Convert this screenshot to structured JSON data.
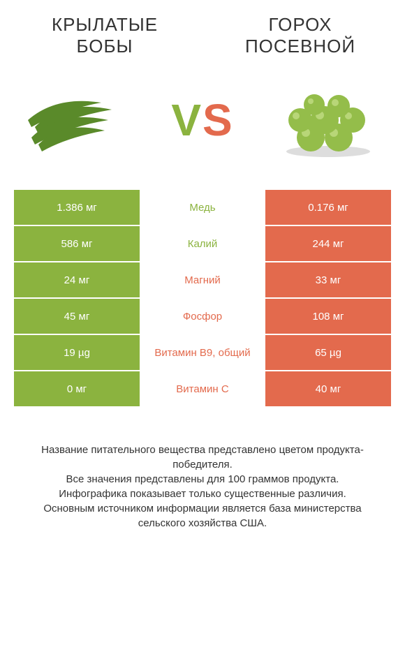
{
  "titles": {
    "left": "КРЫЛАТЫЕ БОБЫ",
    "right": "ГОРОХ ПОСЕВНОЙ"
  },
  "vs": {
    "v": "V",
    "s": "S"
  },
  "colors": {
    "left": "#8bb33f",
    "right": "#e36a4d",
    "left_text_winner": "#8bb33f",
    "right_text_winner": "#e36a4d"
  },
  "rows": [
    {
      "left": "1.386 мг",
      "label": "Медь",
      "right": "0.176 мг",
      "winner": "left"
    },
    {
      "left": "586 мг",
      "label": "Калий",
      "right": "244 мг",
      "winner": "left"
    },
    {
      "left": "24 мг",
      "label": "Магний",
      "right": "33 мг",
      "winner": "right"
    },
    {
      "left": "45 мг",
      "label": "Фосфор",
      "right": "108 мг",
      "winner": "right"
    },
    {
      "left": "19 µg",
      "label": "Витамин B9, общий",
      "right": "65 µg",
      "winner": "right"
    },
    {
      "left": "0 мг",
      "label": "Витамин C",
      "right": "40 мг",
      "winner": "right"
    }
  ],
  "footnote": {
    "l1": "Название питательного вещества представлено цветом продукта-победителя.",
    "l2": "Все значения представлены для 100 граммов продукта.",
    "l3": "Инфографика показывает только существенные различия.",
    "l4": "Основным источником информации является база министерства сельского хозяйства США."
  }
}
